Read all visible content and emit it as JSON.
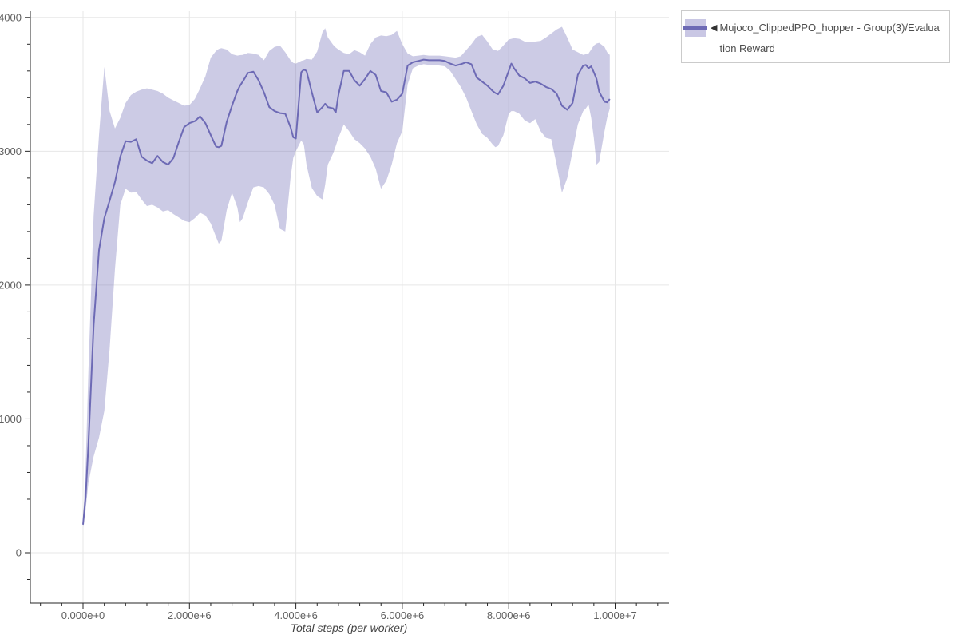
{
  "legend": {
    "marker": "◀",
    "label": "Mujoco_ClippedPPO_hopper - Group(3)/Evaluation Reward"
  },
  "colors": {
    "line": "#6d6ab5",
    "band": "#6d6ab5",
    "band_opacity": 0.35,
    "grid": "#e7e7e7",
    "axis": "#262626",
    "tick_text": "#606060",
    "legend_border": "#cbcbcb",
    "background": "#ffffff"
  },
  "chart_data": {
    "type": "line",
    "title": "",
    "xlabel": "Total steps (per worker)",
    "ylabel": "",
    "grid": true,
    "legend_position": "top-right-outside",
    "x_unit": "steps (x arrays below are in millions of steps)",
    "xlim_millions": [
      -1,
      11
    ],
    "ylim": [
      -375,
      4045
    ],
    "x_ticks": [
      {
        "millions": 0,
        "label": "0.000e+0"
      },
      {
        "millions": 2,
        "label": "2.000e+6"
      },
      {
        "millions": 4,
        "label": "4.000e+6"
      },
      {
        "millions": 6,
        "label": "6.000e+6"
      },
      {
        "millions": 8,
        "label": "8.000e+6"
      },
      {
        "millions": 10,
        "label": "1.000e+7"
      }
    ],
    "y_ticks": [
      {
        "value": 0,
        "label": "0"
      },
      {
        "value": 1000,
        "label": "1000"
      },
      {
        "value": 2000,
        "label": "2000"
      },
      {
        "value": 3000,
        "label": "3000"
      },
      {
        "value": 4000,
        "label": "4000"
      }
    ],
    "x_minor_step_millions": 0.4,
    "y_minor_step": 200,
    "series": [
      {
        "name": "Mujoco_ClippedPPO_hopper - Group(3)/Evaluation Reward",
        "marker": "◀",
        "color": "#6d6ab5",
        "band_color": "#6d6ab5",
        "x_millions": [
          0.0,
          0.05,
          0.1,
          0.2,
          0.3,
          0.4,
          0.5,
          0.6,
          0.7,
          0.8,
          0.9,
          1.0,
          1.1,
          1.2,
          1.3,
          1.4,
          1.5,
          1.6,
          1.7,
          1.8,
          1.9,
          2.0,
          2.1,
          2.2,
          2.3,
          2.4,
          2.5,
          2.55,
          2.6,
          2.7,
          2.8,
          2.9,
          2.95,
          3.0,
          3.1,
          3.2,
          3.3,
          3.4,
          3.5,
          3.6,
          3.7,
          3.8,
          3.9,
          3.95,
          4.0,
          4.1,
          4.15,
          4.2,
          4.3,
          4.4,
          4.5,
          4.55,
          4.6,
          4.7,
          4.75,
          4.8,
          4.9,
          5.0,
          5.1,
          5.2,
          5.3,
          5.4,
          5.5,
          5.6,
          5.7,
          5.8,
          5.9,
          6.0,
          6.1,
          6.2,
          6.3,
          6.4,
          6.5,
          6.6,
          6.7,
          6.8,
          6.9,
          7.0,
          7.1,
          7.2,
          7.3,
          7.4,
          7.5,
          7.6,
          7.7,
          7.75,
          7.8,
          7.9,
          8.0,
          8.05,
          8.1,
          8.2,
          8.3,
          8.4,
          8.5,
          8.6,
          8.7,
          8.8,
          8.9,
          9.0,
          9.1,
          9.2,
          9.3,
          9.4,
          9.45,
          9.5,
          9.55,
          9.6,
          9.65,
          9.7,
          9.8,
          9.85,
          9.9
        ],
        "mean": [
          210,
          420,
          800,
          1700,
          2260,
          2500,
          2630,
          2770,
          2960,
          3075,
          3070,
          3090,
          2960,
          2930,
          2910,
          2965,
          2920,
          2900,
          2950,
          3070,
          3180,
          3210,
          3225,
          3260,
          3210,
          3120,
          3035,
          3030,
          3040,
          3220,
          3340,
          3450,
          3490,
          3520,
          3585,
          3595,
          3530,
          3440,
          3330,
          3300,
          3285,
          3280,
          3180,
          3105,
          3095,
          3590,
          3610,
          3600,
          3440,
          3290,
          3330,
          3355,
          3330,
          3320,
          3290,
          3420,
          3600,
          3600,
          3530,
          3490,
          3540,
          3600,
          3570,
          3450,
          3440,
          3370,
          3385,
          3430,
          3640,
          3665,
          3675,
          3685,
          3680,
          3680,
          3680,
          3675,
          3655,
          3640,
          3650,
          3665,
          3650,
          3550,
          3520,
          3490,
          3450,
          3435,
          3425,
          3490,
          3600,
          3655,
          3620,
          3565,
          3545,
          3510,
          3520,
          3505,
          3480,
          3465,
          3430,
          3340,
          3310,
          3360,
          3570,
          3640,
          3645,
          3620,
          3635,
          3590,
          3540,
          3445,
          3370,
          3365,
          3390
        ],
        "band_low": [
          190,
          320,
          520,
          720,
          860,
          1060,
          1520,
          2120,
          2600,
          2720,
          2690,
          2695,
          2640,
          2590,
          2600,
          2580,
          2550,
          2560,
          2530,
          2505,
          2480,
          2470,
          2500,
          2540,
          2520,
          2460,
          2360,
          2310,
          2330,
          2560,
          2690,
          2580,
          2470,
          2500,
          2620,
          2730,
          2740,
          2730,
          2680,
          2600,
          2420,
          2400,
          2800,
          2950,
          3000,
          3080,
          3050,
          2900,
          2725,
          2665,
          2640,
          2750,
          2900,
          2985,
          3040,
          3100,
          3200,
          3150,
          3090,
          3060,
          3020,
          2960,
          2870,
          2720,
          2780,
          2900,
          3060,
          3150,
          3500,
          3620,
          3640,
          3650,
          3645,
          3645,
          3640,
          3635,
          3600,
          3540,
          3480,
          3400,
          3300,
          3200,
          3130,
          3100,
          3050,
          3030,
          3040,
          3120,
          3280,
          3300,
          3300,
          3280,
          3230,
          3210,
          3240,
          3150,
          3100,
          3090,
          2900,
          2690,
          2800,
          3000,
          3200,
          3300,
          3320,
          3350,
          3250,
          3100,
          2900,
          2920,
          3150,
          3250,
          3320
        ],
        "band_high": [
          240,
          650,
          1350,
          2520,
          3120,
          3630,
          3300,
          3170,
          3250,
          3360,
          3420,
          3445,
          3460,
          3470,
          3460,
          3450,
          3430,
          3400,
          3380,
          3360,
          3340,
          3345,
          3390,
          3470,
          3560,
          3700,
          3750,
          3765,
          3770,
          3760,
          3725,
          3715,
          3718,
          3720,
          3735,
          3730,
          3720,
          3680,
          3750,
          3780,
          3790,
          3740,
          3680,
          3660,
          3655,
          3675,
          3680,
          3690,
          3685,
          3745,
          3890,
          3920,
          3850,
          3795,
          3775,
          3760,
          3735,
          3725,
          3755,
          3740,
          3715,
          3800,
          3850,
          3865,
          3860,
          3870,
          3900,
          3800,
          3730,
          3710,
          3715,
          3720,
          3715,
          3715,
          3715,
          3710,
          3705,
          3700,
          3710,
          3755,
          3800,
          3855,
          3870,
          3820,
          3760,
          3755,
          3750,
          3790,
          3835,
          3840,
          3845,
          3840,
          3820,
          3815,
          3820,
          3825,
          3850,
          3880,
          3910,
          3930,
          3850,
          3760,
          3740,
          3720,
          3725,
          3730,
          3760,
          3790,
          3805,
          3810,
          3780,
          3740,
          3720
        ]
      }
    ]
  }
}
